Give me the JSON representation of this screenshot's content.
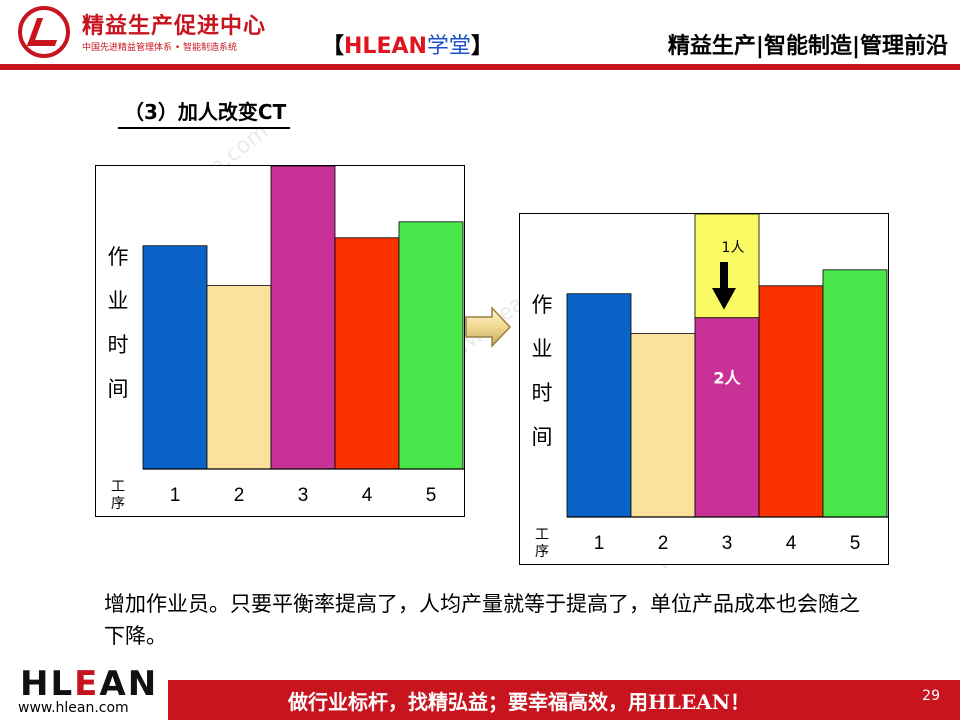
{
  "header": {
    "logo_title": "精益生产促进中心",
    "logo_subtitle": "中国先进精益管理体系 • 智能制造系统",
    "center_left_bracket": "【",
    "center_brand": "HLEAN",
    "center_school": "学堂",
    "center_right_bracket": "】",
    "right_text": "精益生产|智能制造|管理前沿",
    "accent_color": "#c8141e"
  },
  "slide_title": "（3）加人改变CT",
  "watermark": "www.hlean.com",
  "chart_data": [
    {
      "type": "bar",
      "categories": [
        "1",
        "2",
        "3",
        "4",
        "5"
      ],
      "values": [
        56,
        46,
        76,
        58,
        62
      ],
      "colors": [
        "#0a64c8",
        "#fae19c",
        "#c83296",
        "#fa3200",
        "#4be64b"
      ],
      "ylabel": [
        "作",
        "业",
        "时",
        "间"
      ],
      "xlabel": [
        "工",
        "序"
      ],
      "ylim": [
        0,
        76
      ]
    },
    {
      "type": "bar",
      "categories": [
        "1",
        "2",
        "3",
        "4",
        "5"
      ],
      "values": [
        56,
        46,
        50,
        58,
        62
      ],
      "colors": [
        "#0a64c8",
        "#fae19c",
        "#c83296",
        "#fa3200",
        "#4be64b"
      ],
      "removed_segment": {
        "category": "3",
        "from": 50,
        "to": 76,
        "color": "#fafa64",
        "label": "1人"
      },
      "bar_label": {
        "category": "3",
        "text": "2人"
      },
      "ylabel": [
        "作",
        "业",
        "时",
        "间"
      ],
      "xlabel": [
        "工",
        "序"
      ],
      "ylim": [
        0,
        76
      ]
    }
  ],
  "caption": "增加作业员。只要平衡率提高了，人均产量就等于提高了，单位产品成本也会随之下降。",
  "footer": {
    "logo_h": "H",
    "logo_l": "L",
    "logo_e": "E",
    "logo_an": "AN",
    "url": "www.hlean.com",
    "slogan": "做行业标杆，找精弘益；要幸福高效，用HLEAN！",
    "page_number": "29"
  }
}
